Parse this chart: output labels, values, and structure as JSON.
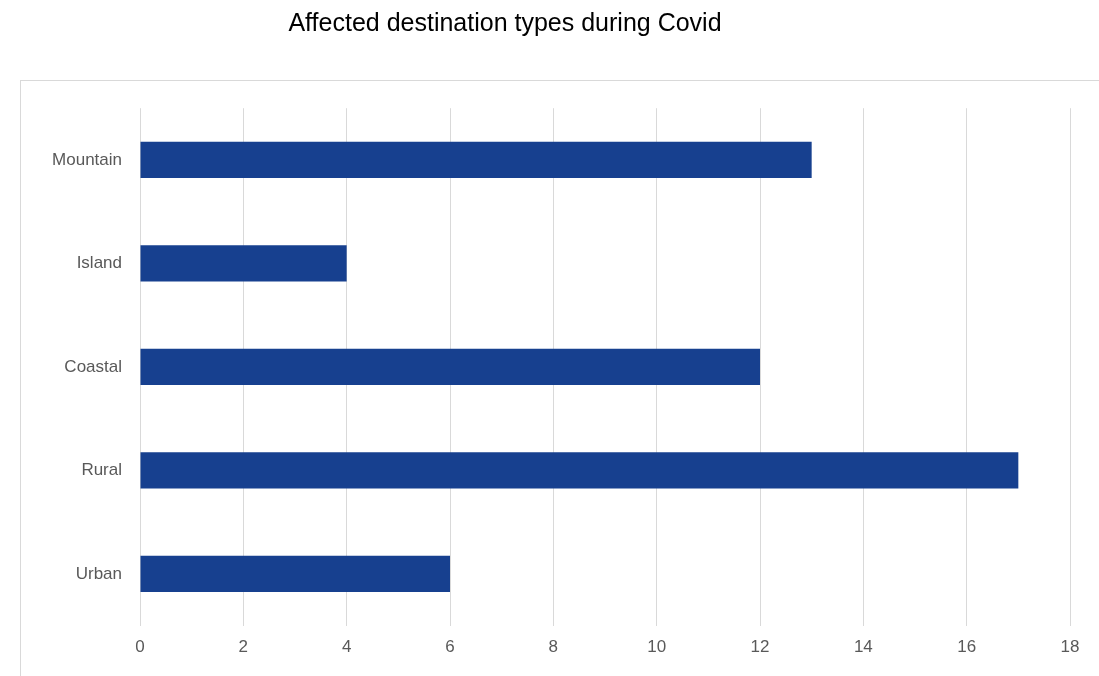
{
  "chart_data": {
    "type": "bar",
    "orientation": "horizontal",
    "title": "Affected destination types during Covid",
    "categories": [
      "Mountain",
      "Island",
      "Coastal",
      "Rural",
      "Urban"
    ],
    "values": [
      13,
      4,
      12,
      17,
      6
    ],
    "color": "#17408f",
    "xlim": [
      0,
      18
    ],
    "xticks": [
      0,
      2,
      4,
      6,
      8,
      10,
      12,
      14,
      16,
      18
    ],
    "grid": "x"
  }
}
